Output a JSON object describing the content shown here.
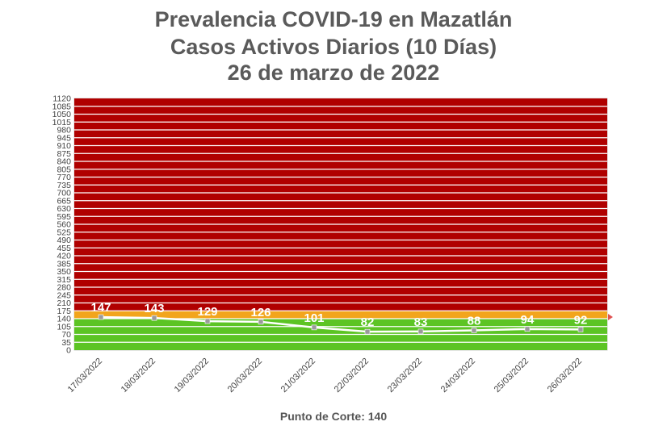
{
  "title_lines": [
    "Prevalencia COVID-19 en Mazatlán",
    "Casos Activos Diarios (10 Días)",
    "26 de marzo de 2022"
  ],
  "footer_text": "Punto de Corte: 140",
  "chart_data": {
    "type": "line",
    "title": "Prevalencia COVID-19 en Mazatlán / Casos Activos Diarios (10 Días) / 26 de marzo de 2022",
    "categories": [
      "17/03/2022",
      "18/03/2022",
      "19/03/2022",
      "20/03/2022",
      "21/03/2022",
      "22/03/2022",
      "23/03/2022",
      "24/03/2022",
      "25/03/2022",
      "26/03/2022"
    ],
    "values": [
      147,
      143,
      129,
      126,
      101,
      82,
      83,
      88,
      94,
      92
    ],
    "data_labels": [
      "147",
      "143",
      "129",
      "126",
      "101",
      "82",
      "83",
      "88",
      "94",
      "92"
    ],
    "ylim": [
      0,
      1120
    ],
    "y_ticks": [
      "0",
      "35",
      "70",
      "105",
      "140",
      "175",
      "210",
      "245",
      "280",
      "315",
      "350",
      "385",
      "420",
      "455",
      "490",
      "525",
      "560",
      "595",
      "630",
      "665",
      "700",
      "735",
      "770",
      "805",
      "840",
      "875",
      "910",
      "945",
      "980",
      "1015",
      "1050",
      "1085",
      "1120"
    ],
    "y_step": 35,
    "bands": [
      {
        "from": 0,
        "to": 140,
        "color": "#5cc424"
      },
      {
        "from": 140,
        "to": 175,
        "color": "#f2a51c"
      },
      {
        "from": 175,
        "to": 1120,
        "color": "#b00000"
      }
    ],
    "cutoff": 140,
    "line_color": "#ffffff",
    "marker_color": "#9a9a9a",
    "label_color": "#ffffff",
    "grid": true
  }
}
